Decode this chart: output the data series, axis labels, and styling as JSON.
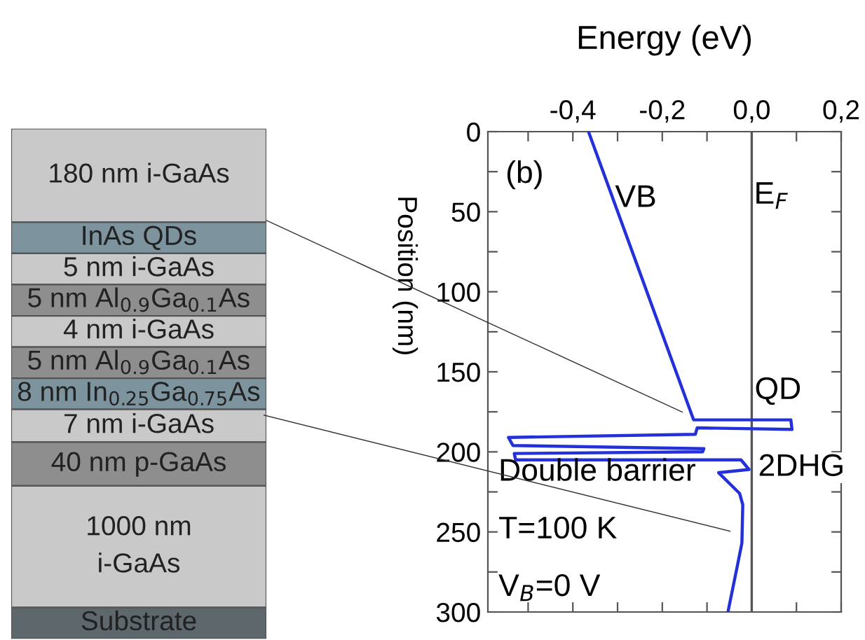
{
  "chart_data": [
    {
      "type": "other",
      "categories": [
        "180 nm i-GaAs",
        "InAs QDs",
        "5 nm i-GaAs",
        "5 nm Al$_{0.9}$Ga$_{0.1}$As",
        "4 nm i-GaAs",
        "5 nm Al$_{0.9}$Ga$_{0.1}$As",
        "8 nm In$_{0.25}$Ga$_{0.75}$As",
        "7 nm i-GaAs",
        "40 nm p-GaAs",
        "1000 nm\ni-GaAs",
        "Substrate"
      ],
      "colors": [
        "#c9c9c9",
        "#7d949e",
        "#c9c9c9",
        "#8e8e8e",
        "#c9c9c9",
        "#8e8e8e",
        "#7d949e",
        "#c9c9c9",
        "#8e8e8e",
        "#c9c9c9",
        "#5e686c"
      ]
    },
    {
      "type": "line",
      "xlabel": "Energy (eV)",
      "ylabel": "Position (nm)",
      "series": [
        {
          "color": "#2431d8",
          "x": [
            -0.365,
            -0.13,
            0.0875,
            0.09,
            -0.122,
            -0.126,
            -0.544,
            -0.534,
            -0.107,
            -0.11,
            -0.531,
            -0.528,
            -0.024,
            -0.006,
            -0.074,
            -0.027,
            -0.02,
            -0.022,
            -0.032,
            -0.051,
            -0.053
          ],
          "values": [
            0,
            180,
            180,
            186,
            185,
            189,
            191,
            196,
            198,
            200,
            201,
            205,
            205,
            211,
            213,
            226,
            233,
            257,
            271,
            297,
            300
          ]
        }
      ],
      "xlim": [
        -0.59,
        0.2
      ],
      "ylim": [
        300,
        0
      ],
      "xticks": [
        {
          "value": -0.5,
          "label": null
        },
        {
          "value": -0.4,
          "label": "-0,4"
        },
        {
          "value": -0.3,
          "label": null
        },
        {
          "value": -0.2,
          "label": "-0,2"
        },
        {
          "value": -0.1,
          "label": null
        },
        {
          "value": 0.0,
          "label": "0,0"
        },
        {
          "value": 0.1,
          "label": null
        },
        {
          "value": 0.2,
          "label": "0,2"
        }
      ],
      "yticks": [
        0,
        {
          "value": 25,
          "label": null
        },
        50,
        {
          "value": 75,
          "label": null
        },
        100,
        {
          "value": 125,
          "label": null
        },
        150,
        {
          "value": 175,
          "label": null
        },
        200,
        {
          "value": 225,
          "label": null
        },
        250,
        {
          "value": 275,
          "label": null
        },
        300
      ],
      "ref_lines": [
        {
          "axis": "x",
          "value": 0.0,
          "label": "E$_{F}$",
          "color": "#555555"
        }
      ],
      "annotations": [
        "VB",
        "QD",
        "2DHG",
        "(b)",
        "Double barrier",
        "T=100 K",
        "V$_{B}$=0 V"
      ],
      "grid": false,
      "legend": false,
      "marker": "none",
      "line_style": "solid"
    }
  ]
}
